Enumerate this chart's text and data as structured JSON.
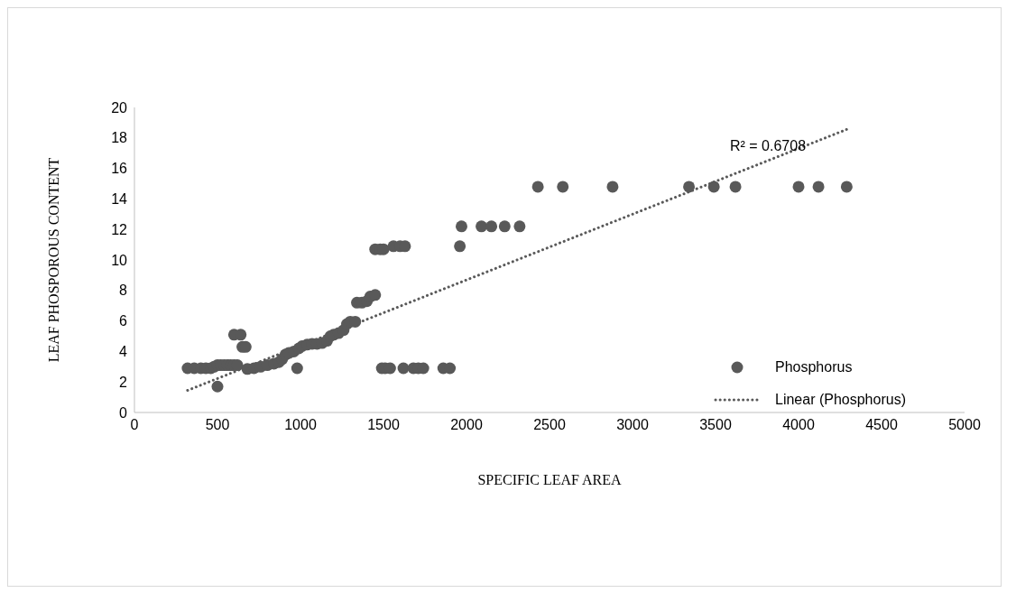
{
  "chart_data": {
    "type": "scatter",
    "xlabel": "SPECIFIC LEAF AREA",
    "ylabel": "LEAF PHOSPOROUS CONTENT",
    "xlim": [
      0,
      5000
    ],
    "xticks": [
      0,
      500,
      1000,
      1500,
      2000,
      2500,
      3000,
      3500,
      4000,
      4500,
      5000
    ],
    "ylim": [
      0,
      20
    ],
    "yticks": [
      0,
      2,
      4,
      6,
      8,
      10,
      12,
      14,
      16,
      18,
      20
    ],
    "grid": false,
    "legend": "right",
    "marker": "circle",
    "annotations": [
      "R² = 0.6708"
    ],
    "series": [
      {
        "name": "Phosphorus",
        "color": "#595959",
        "x": [
          320,
          360,
          400,
          430,
          460,
          480,
          500,
          520,
          540,
          560,
          580,
          600,
          620,
          500,
          600,
          640,
          650,
          670,
          680,
          720,
          760,
          800,
          840,
          870,
          890,
          910,
          930,
          960,
          980,
          990,
          1010,
          1040,
          1070,
          1100,
          1130,
          1160,
          1180,
          1200,
          1230,
          1260,
          1280,
          1300,
          1330,
          1340,
          1370,
          1400,
          1420,
          1450,
          1450,
          1480,
          1500,
          1560,
          1600,
          1630,
          1490,
          1510,
          1540,
          1620,
          1680,
          1710,
          1740,
          1860,
          1900,
          1960,
          1970,
          2090,
          2150,
          2230,
          2320,
          2430,
          2580,
          2880,
          3340,
          3490,
          3620,
          4000,
          4120,
          4290
        ],
        "values": [
          2.9,
          2.9,
          2.9,
          2.9,
          2.9,
          3.0,
          3.1,
          3.1,
          3.1,
          3.1,
          3.1,
          3.1,
          3.1,
          1.7,
          5.1,
          5.1,
          4.3,
          4.3,
          2.85,
          2.9,
          3.0,
          3.1,
          3.2,
          3.3,
          3.5,
          3.8,
          3.9,
          4.0,
          2.9,
          4.2,
          4.35,
          4.45,
          4.5,
          4.5,
          4.55,
          4.7,
          5.0,
          5.1,
          5.2,
          5.4,
          5.8,
          5.95,
          5.95,
          7.2,
          7.2,
          7.3,
          7.6,
          7.7,
          10.7,
          10.7,
          10.7,
          10.9,
          10.9,
          10.9,
          2.9,
          2.9,
          2.9,
          2.9,
          2.9,
          2.9,
          2.9,
          2.9,
          2.9,
          10.9,
          12.2,
          12.2,
          12.2,
          12.2,
          12.2,
          14.8,
          14.8,
          14.8,
          14.8,
          14.8,
          14.8,
          14.8,
          14.8,
          14.8
        ]
      },
      {
        "name": "Linear (Phosphorus)",
        "color": "#595959",
        "type": "line",
        "line_style": "dotted",
        "marker": "none",
        "x": [
          320,
          4300
        ],
        "values": [
          1.45,
          18.6
        ]
      }
    ]
  }
}
